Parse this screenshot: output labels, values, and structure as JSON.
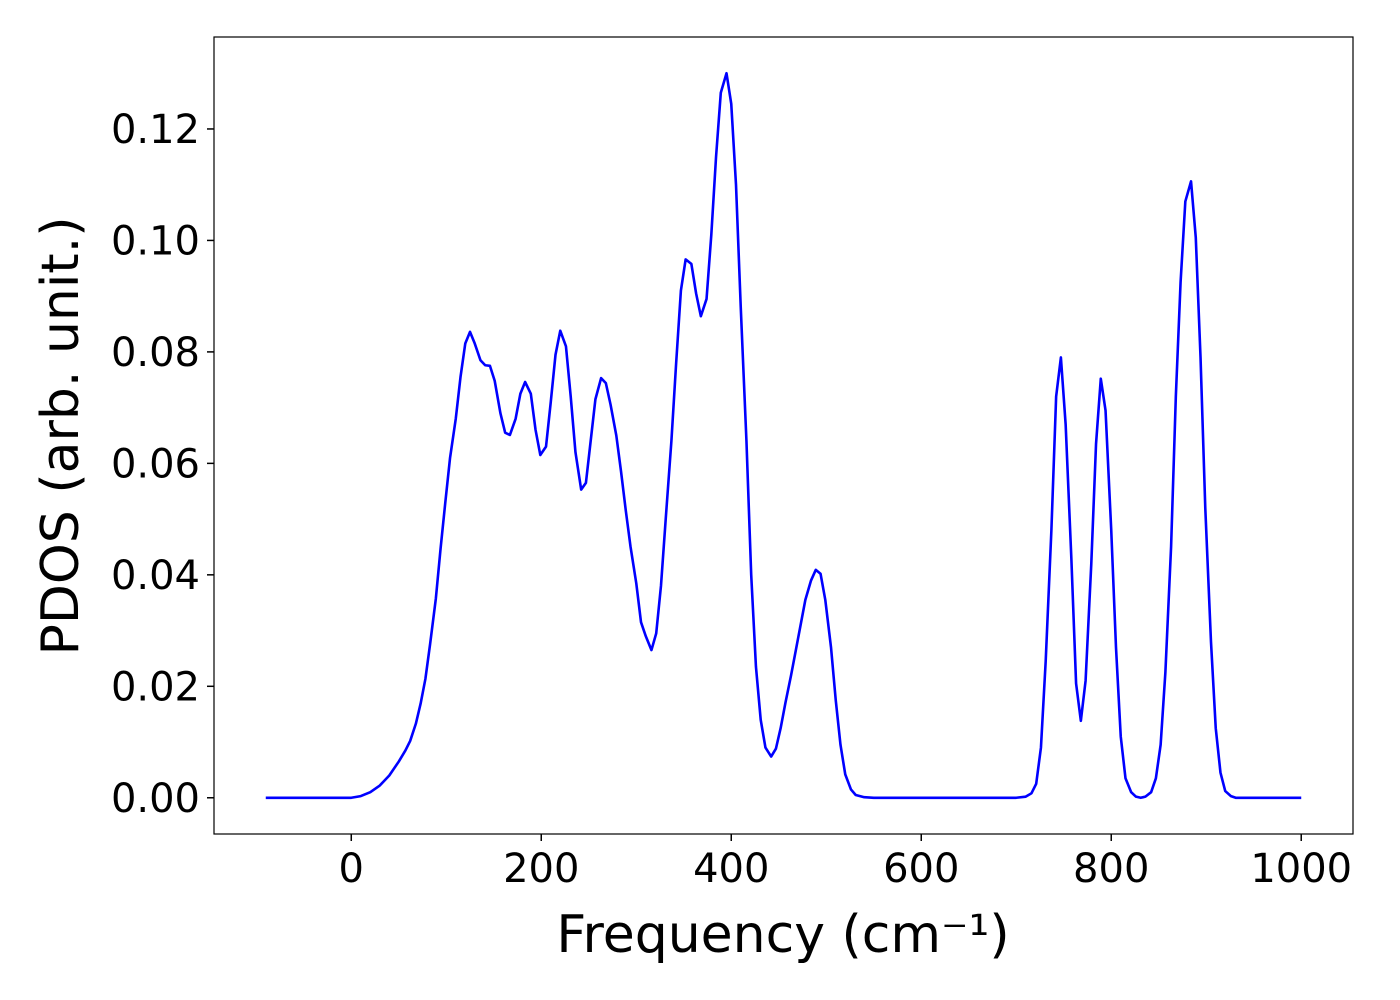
{
  "chart_data": {
    "type": "line",
    "xlabel": "Frequency (cm⁻¹)",
    "ylabel": "PDOS (arb. unit.)",
    "color": "#0000ff",
    "xlim": [
      -144.5,
      1054.5
    ],
    "ylim": [
      -0.0065,
      0.1365
    ],
    "xticks": [
      0,
      200,
      400,
      600,
      800,
      1000
    ],
    "yticks": [
      {
        "value": 0,
        "label": "0.00"
      },
      {
        "value": 0.02,
        "label": "0.02"
      },
      {
        "value": 0.04,
        "label": "0.04"
      },
      {
        "value": 0.06,
        "label": "0.06"
      },
      {
        "value": 0.08,
        "label": "0.08"
      },
      {
        "value": 0.1,
        "label": "0.10"
      },
      {
        "value": 0.12,
        "label": "0.12"
      }
    ],
    "x": [
      -90,
      0,
      10,
      20,
      30,
      40,
      50,
      57,
      62,
      68,
      73,
      78,
      83,
      89,
      94,
      99,
      104,
      110,
      115,
      120,
      125,
      130,
      136,
      141,
      146,
      151,
      157,
      162,
      167,
      173,
      178,
      183,
      189,
      194,
      199,
      205,
      210,
      215,
      220,
      226,
      231,
      236,
      242,
      247,
      252,
      257,
      263,
      268,
      273,
      279,
      284,
      289,
      294,
      300,
      305,
      310,
      316,
      321,
      326,
      331,
      337,
      342,
      347,
      352,
      358,
      363,
      368,
      374,
      379,
      384,
      389,
      395,
      400,
      405,
      410,
      416,
      421,
      426,
      431,
      436,
      442,
      447,
      452,
      457,
      463,
      468,
      473,
      478,
      484,
      489,
      494,
      499,
      505,
      510,
      515,
      520,
      526,
      531,
      540,
      550,
      700,
      710,
      716,
      721,
      726,
      731,
      737,
      742,
      747,
      752,
      758,
      763,
      768,
      773,
      779,
      784,
      789,
      794,
      800,
      805,
      810,
      815,
      821,
      826,
      831,
      836,
      842,
      847,
      852,
      857,
      863,
      868,
      873,
      878,
      884,
      889,
      894,
      899,
      905,
      910,
      915,
      920,
      926,
      931,
      1000
    ],
    "values": [
      0,
      0,
      0.0003,
      0.001,
      0.0022,
      0.004,
      0.0065,
      0.0085,
      0.0102,
      0.0133,
      0.0169,
      0.0213,
      0.0276,
      0.0357,
      0.0447,
      0.053,
      0.061,
      0.068,
      0.0755,
      0.0815,
      0.0836,
      0.0815,
      0.0785,
      0.0776,
      0.0775,
      0.0748,
      0.069,
      0.0655,
      0.0651,
      0.068,
      0.0725,
      0.0746,
      0.0725,
      0.066,
      0.0615,
      0.063,
      0.071,
      0.0795,
      0.0838,
      0.081,
      0.072,
      0.062,
      0.0553,
      0.0565,
      0.064,
      0.0715,
      0.0753,
      0.0744,
      0.0705,
      0.065,
      0.0585,
      0.0515,
      0.045,
      0.0385,
      0.0315,
      0.029,
      0.0265,
      0.0295,
      0.038,
      0.05,
      0.064,
      0.078,
      0.091,
      0.0966,
      0.0958,
      0.0905,
      0.0864,
      0.0895,
      0.101,
      0.115,
      0.1265,
      0.13,
      0.1245,
      0.11,
      0.088,
      0.064,
      0.04,
      0.0235,
      0.014,
      0.009,
      0.0074,
      0.0088,
      0.0125,
      0.017,
      0.022,
      0.0265,
      0.031,
      0.0355,
      0.039,
      0.0409,
      0.0402,
      0.0355,
      0.027,
      0.0175,
      0.0095,
      0.0042,
      0.0015,
      0.0005,
      0.0001,
      0,
      0,
      0.0002,
      0.0008,
      0.0025,
      0.009,
      0.0245,
      0.048,
      0.072,
      0.079,
      0.067,
      0.043,
      0.0205,
      0.0138,
      0.021,
      0.042,
      0.0635,
      0.0752,
      0.0695,
      0.048,
      0.027,
      0.011,
      0.0035,
      0.001,
      0.0002,
      0,
      0.0002,
      0.001,
      0.0035,
      0.0095,
      0.0225,
      0.045,
      0.072,
      0.0925,
      0.107,
      0.1106,
      0.1005,
      0.079,
      0.052,
      0.028,
      0.0125,
      0.0045,
      0.0012,
      0.0003,
      0,
      0
    ]
  }
}
